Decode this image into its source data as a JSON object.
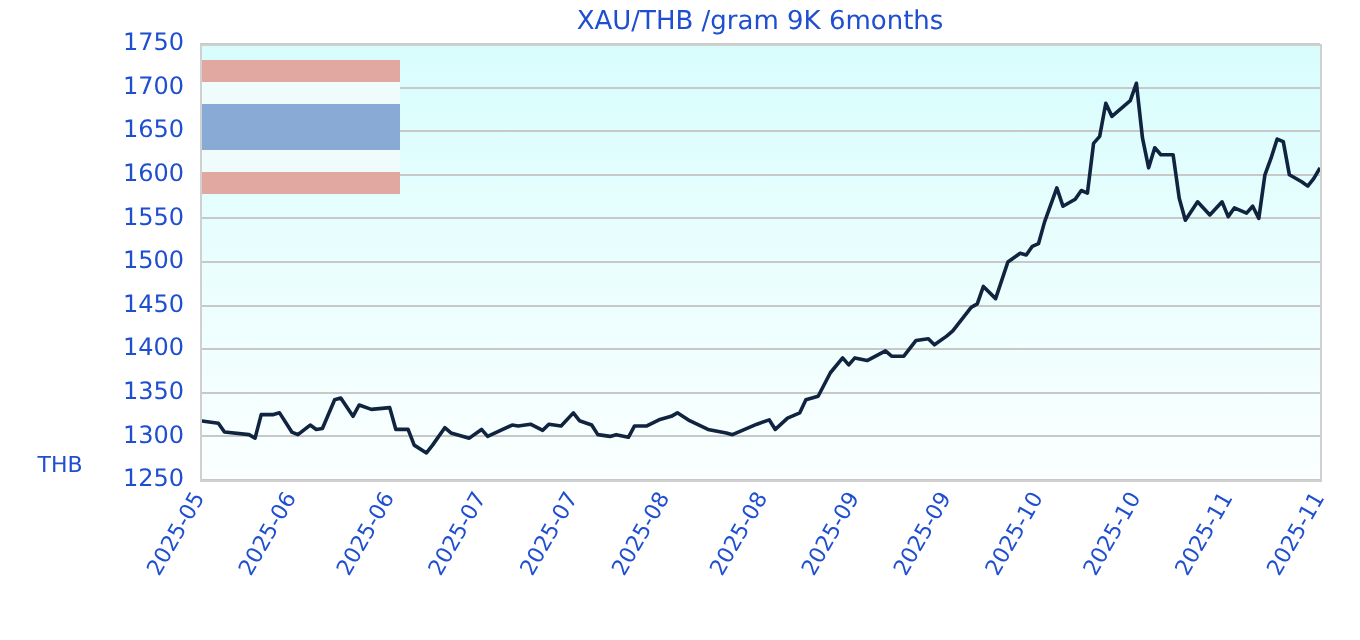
{
  "chart_data": {
    "type": "line",
    "title": "XAU/THB /gram 9K 6months",
    "ylabel": "THB",
    "x": [
      "2025-05-20",
      "2025-05-23",
      "2025-05-24",
      "2025-05-28",
      "2025-05-29",
      "2025-05-30",
      "2025-06-01",
      "2025-06-02",
      "2025-06-04",
      "2025-06-05",
      "2025-06-07",
      "2025-06-08",
      "2025-06-09",
      "2025-06-11",
      "2025-06-12",
      "2025-06-14",
      "2025-06-15",
      "2025-06-17",
      "2025-06-20",
      "2025-06-21",
      "2025-06-23",
      "2025-06-24",
      "2025-06-26",
      "2025-06-27",
      "2025-06-29",
      "2025-06-30",
      "2025-07-03",
      "2025-07-05",
      "2025-07-06",
      "2025-07-10",
      "2025-07-11",
      "2025-07-13",
      "2025-07-15",
      "2025-07-16",
      "2025-07-18",
      "2025-07-20",
      "2025-07-21",
      "2025-07-23",
      "2025-07-24",
      "2025-07-26",
      "2025-07-27",
      "2025-07-29",
      "2025-07-30",
      "2025-08-01",
      "2025-08-03",
      "2025-08-05",
      "2025-08-06",
      "2025-08-08",
      "2025-08-11",
      "2025-08-14",
      "2025-08-15",
      "2025-08-17",
      "2025-08-19",
      "2025-08-21",
      "2025-08-22",
      "2025-08-24",
      "2025-08-26",
      "2025-08-27",
      "2025-08-29",
      "2025-08-31",
      "2025-09-02",
      "2025-09-03",
      "2025-09-04",
      "2025-09-06",
      "2025-09-09",
      "2025-09-10",
      "2025-09-12",
      "2025-09-14",
      "2025-09-16",
      "2025-09-17",
      "2025-09-19",
      "2025-09-20",
      "2025-09-23",
      "2025-09-24",
      "2025-09-25",
      "2025-09-27",
      "2025-09-29",
      "2025-10-01",
      "2025-10-02",
      "2025-10-03",
      "2025-10-04",
      "2025-10-05",
      "2025-10-07",
      "2025-10-08",
      "2025-10-10",
      "2025-10-11",
      "2025-10-12",
      "2025-10-13",
      "2025-10-14",
      "2025-10-15",
      "2025-10-16",
      "2025-10-19",
      "2025-10-20",
      "2025-10-21",
      "2025-10-22",
      "2025-10-23",
      "2025-10-24",
      "2025-10-26",
      "2025-10-27",
      "2025-10-28",
      "2025-10-30",
      "2025-11-01",
      "2025-11-03",
      "2025-11-04",
      "2025-11-05",
      "2025-11-07",
      "2025-11-08",
      "2025-11-09",
      "2025-11-10",
      "2025-11-11",
      "2025-11-12",
      "2025-11-13",
      "2025-11-14",
      "2025-11-16",
      "2025-11-17",
      "2025-11-18",
      "2025-11-19"
    ],
    "values": [
      1318,
      1315,
      1305,
      1302,
      1298,
      1325,
      1325,
      1327,
      1305,
      1302,
      1313,
      1308,
      1309,
      1342,
      1344,
      1323,
      1336,
      1331,
      1333,
      1308,
      1308,
      1290,
      1281,
      1290,
      1310,
      1304,
      1298,
      1308,
      1300,
      1313,
      1312,
      1314,
      1307,
      1314,
      1312,
      1327,
      1318,
      1313,
      1302,
      1300,
      1302,
      1299,
      1312,
      1312,
      1319,
      1323,
      1327,
      1318,
      1308,
      1304,
      1302,
      1308,
      1314,
      1319,
      1308,
      1321,
      1327,
      1342,
      1346,
      1373,
      1390,
      1382,
      1390,
      1387,
      1398,
      1392,
      1392,
      1410,
      1412,
      1405,
      1415,
      1421,
      1448,
      1452,
      1472,
      1458,
      1500,
      1510,
      1508,
      1518,
      1521,
      1546,
      1585,
      1564,
      1572,
      1582,
      1579,
      1636,
      1644,
      1682,
      1667,
      1685,
      1705,
      1642,
      1608,
      1631,
      1623,
      1623,
      1573,
      1548,
      1569,
      1554,
      1569,
      1552,
      1562,
      1556,
      1564,
      1550,
      1600,
      1619,
      1641,
      1638,
      1600,
      1592,
      1587,
      1596,
      1608
    ],
    "color": "#10233f",
    "line_style": "solid",
    "marker": "none",
    "grid": "y",
    "legend": false,
    "xlim": [
      "2025-05-20",
      "2025-11-19"
    ],
    "xticks": [
      {
        "value": "2025-05-20",
        "label": "2025-05"
      },
      {
        "value": "2025-06-04",
        "label": "2025-06"
      },
      {
        "value": "2025-06-20",
        "label": "2025-06"
      },
      {
        "value": "2025-07-05",
        "label": "2025-07"
      },
      {
        "value": "2025-07-20",
        "label": "2025-07"
      },
      {
        "value": "2025-08-04",
        "label": "2025-08"
      },
      {
        "value": "2025-08-20",
        "label": "2025-08"
      },
      {
        "value": "2025-09-04",
        "label": "2025-09"
      },
      {
        "value": "2025-09-19",
        "label": "2025-09"
      },
      {
        "value": "2025-10-04",
        "label": "2025-10"
      },
      {
        "value": "2025-10-20",
        "label": "2025-10"
      },
      {
        "value": "2025-11-04",
        "label": "2025-11"
      },
      {
        "value": "2025-11-19",
        "label": "2025-11"
      }
    ],
    "ylim": [
      1250,
      1750
    ],
    "yticks": [
      1250,
      1300,
      1350,
      1400,
      1450,
      1500,
      1550,
      1600,
      1650,
      1700,
      1750
    ]
  }
}
